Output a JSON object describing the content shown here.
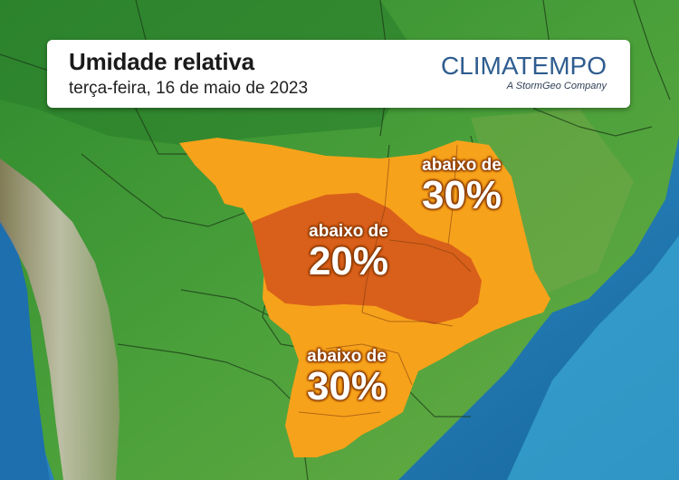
{
  "header": {
    "title": "Umidade relativa",
    "date": "terça-feira, 16 de maio de 2023"
  },
  "brand": {
    "name": "CLIMATEMPO",
    "tagline": "A StormGeo Company"
  },
  "zones": [
    {
      "id": "northeast",
      "caption": "abaixo de",
      "value": "30%"
    },
    {
      "id": "central",
      "caption": "abaixo de",
      "value": "20%"
    },
    {
      "id": "south",
      "caption": "abaixo de",
      "value": "30%"
    }
  ],
  "colors": {
    "below30": "#f7a21b",
    "below20": "#d9601a",
    "ocean": "#1f7fc0",
    "land": "#3e9a3a"
  }
}
